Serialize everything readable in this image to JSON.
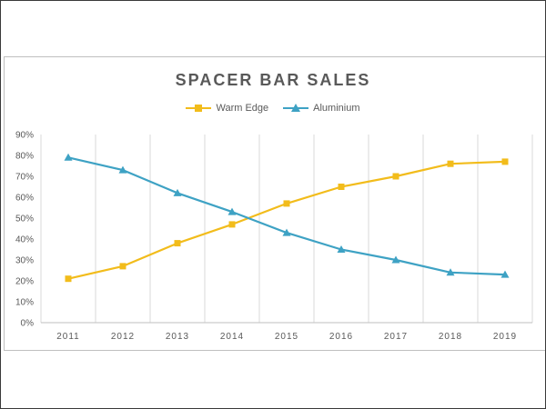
{
  "chart_data": {
    "type": "line",
    "title": "SPACER BAR SALES",
    "xlabel": "",
    "ylabel": "",
    "categories": [
      "2011",
      "2012",
      "2013",
      "2014",
      "2015",
      "2016",
      "2017",
      "2018",
      "2019"
    ],
    "ylim": [
      0,
      90
    ],
    "yticks": [
      "0%",
      "10%",
      "20%",
      "30%",
      "40%",
      "50%",
      "60%",
      "70%",
      "80%",
      "90%"
    ],
    "grid": "vertical",
    "legend_position": "top",
    "series": [
      {
        "name": "Warm Edge",
        "color": "#f2bc1b",
        "marker": "square",
        "values": [
          21,
          27,
          38,
          47,
          57,
          65,
          70,
          76,
          77
        ]
      },
      {
        "name": "Aluminium",
        "color": "#3ea2c4",
        "marker": "triangle",
        "values": [
          79,
          73,
          62,
          53,
          43,
          35,
          30,
          24,
          23
        ]
      }
    ]
  }
}
